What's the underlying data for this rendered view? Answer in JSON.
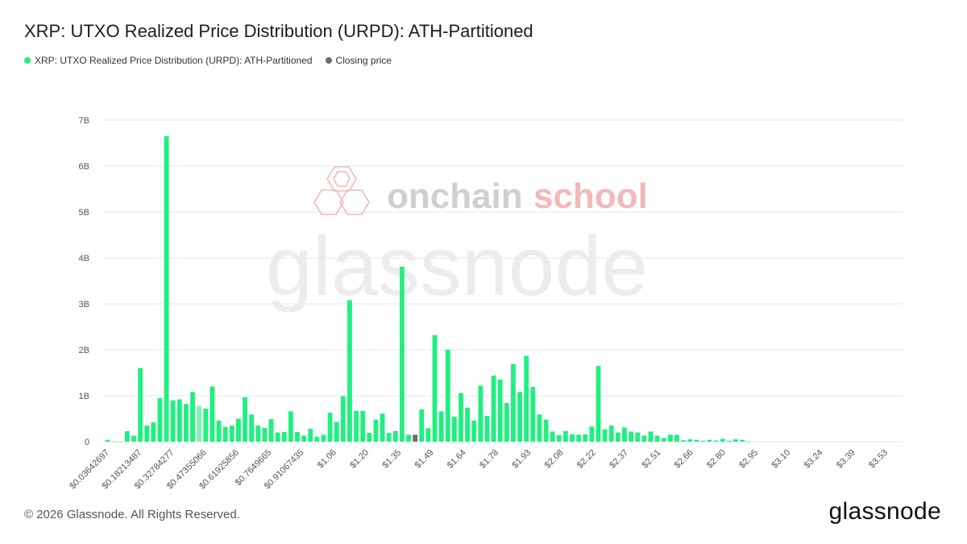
{
  "title": "XRP: UTXO Realized Price Distribution (URPD): ATH-Partitioned",
  "legend": {
    "series_label": "XRP: UTXO Realized Price Distribution (URPD): ATH-Partitioned",
    "closing_label": "Closing price"
  },
  "footer": {
    "copyright": "© 2026 Glassnode. All Rights Reserved.",
    "logo": "glassnode"
  },
  "watermarks": {
    "onchain_left": "onchain",
    "onchain_right": "school",
    "glassnode": "glassnode"
  },
  "colors": {
    "series": "#1ff07f",
    "series_light": "#7ff5b0",
    "closing": "#6b6b6b",
    "grid": "#e6e6e6",
    "axis_text": "#555555"
  },
  "chart_data": {
    "type": "bar",
    "title": "XRP: UTXO Realized Price Distribution (URPD): ATH-Partitioned",
    "xlabel": "",
    "ylabel": "",
    "ylim": [
      0,
      7000000000
    ],
    "y_ticks": [
      {
        "value": 0,
        "label": "0"
      },
      {
        "value": 1000000000,
        "label": "1B"
      },
      {
        "value": 2000000000,
        "label": "2B"
      },
      {
        "value": 3000000000,
        "label": "3B"
      },
      {
        "value": 4000000000,
        "label": "4B"
      },
      {
        "value": 5000000000,
        "label": "5B"
      },
      {
        "value": 6000000000,
        "label": "6B"
      },
      {
        "value": 7000000000,
        "label": "7B"
      }
    ],
    "x_tick_labels": [
      {
        "index": 0,
        "label": "$0.03642697"
      },
      {
        "index": 5,
        "label": "$0.18213487"
      },
      {
        "index": 10,
        "label": "$0.32784277"
      },
      {
        "index": 15,
        "label": "$0.47355066"
      },
      {
        "index": 20,
        "label": "$0.61925856"
      },
      {
        "index": 25,
        "label": "$0.7649665"
      },
      {
        "index": 30,
        "label": "$0.91067435"
      },
      {
        "index": 35,
        "label": "$1.06"
      },
      {
        "index": 40,
        "label": "$1.20"
      },
      {
        "index": 45,
        "label": "$1.35"
      },
      {
        "index": 50,
        "label": "$1.49"
      },
      {
        "index": 55,
        "label": "$1.64"
      },
      {
        "index": 60,
        "label": "$1.78"
      },
      {
        "index": 65,
        "label": "$1.93"
      },
      {
        "index": 70,
        "label": "$2.08"
      },
      {
        "index": 75,
        "label": "$2.22"
      },
      {
        "index": 80,
        "label": "$2.37"
      },
      {
        "index": 85,
        "label": "$2.51"
      },
      {
        "index": 90,
        "label": "$2.66"
      },
      {
        "index": 95,
        "label": "$2.80"
      },
      {
        "index": 100,
        "label": "$2.95"
      },
      {
        "index": 105,
        "label": "$3.10"
      },
      {
        "index": 110,
        "label": "$3.24"
      },
      {
        "index": 115,
        "label": "$3.39"
      },
      {
        "index": 120,
        "label": "$3.53"
      }
    ],
    "closing_index": 47,
    "highlight_index": 14,
    "values": [
      40000000,
      5000000,
      5000000,
      230000000,
      130000000,
      1600000000,
      350000000,
      420000000,
      950000000,
      6650000000,
      900000000,
      920000000,
      820000000,
      1080000000,
      780000000,
      720000000,
      1200000000,
      460000000,
      320000000,
      350000000,
      500000000,
      970000000,
      590000000,
      350000000,
      300000000,
      490000000,
      200000000,
      210000000,
      660000000,
      210000000,
      130000000,
      280000000,
      110000000,
      150000000,
      630000000,
      430000000,
      990000000,
      3080000000,
      670000000,
      670000000,
      190000000,
      480000000,
      610000000,
      190000000,
      230000000,
      3810000000,
      150000000,
      150000000,
      700000000,
      290000000,
      2320000000,
      660000000,
      2000000000,
      540000000,
      1060000000,
      740000000,
      460000000,
      1220000000,
      560000000,
      1440000000,
      1350000000,
      840000000,
      1690000000,
      1080000000,
      1870000000,
      1190000000,
      590000000,
      480000000,
      220000000,
      140000000,
      230000000,
      160000000,
      150000000,
      160000000,
      330000000,
      1650000000,
      270000000,
      350000000,
      200000000,
      310000000,
      220000000,
      200000000,
      130000000,
      220000000,
      130000000,
      80000000,
      150000000,
      150000000,
      30000000,
      50000000,
      40000000,
      20000000,
      40000000,
      25000000,
      60000000,
      20000000,
      50000000,
      40000000,
      5000000
    ]
  }
}
